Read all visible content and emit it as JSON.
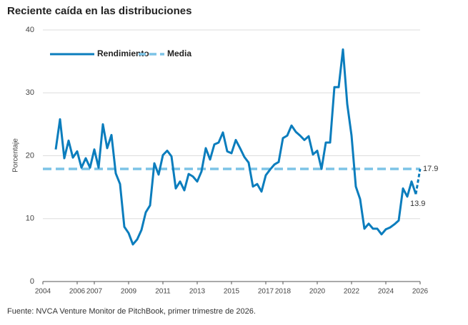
{
  "chart_data": {
    "type": "line",
    "title": "Reciente caída en las distribuciones",
    "y_label": "Porcentaje",
    "source": "Fuente: NVCA Venture Monitor de PitchBook, primer trimestre de 2026.",
    "x": [
      2004.75,
      2005,
      2005.25,
      2005.5,
      2005.75,
      2006,
      2006.25,
      2006.5,
      2006.75,
      2007,
      2007.25,
      2007.5,
      2007.75,
      2008,
      2008.25,
      2008.5,
      2008.75,
      2009,
      2009.25,
      2009.5,
      2009.75,
      2010,
      2010.25,
      2010.5,
      2010.75,
      2011,
      2011.25,
      2011.5,
      2011.75,
      2012,
      2012.25,
      2012.5,
      2012.75,
      2013,
      2013.25,
      2013.5,
      2013.75,
      2014,
      2014.25,
      2014.5,
      2014.75,
      2015,
      2015.25,
      2015.5,
      2015.75,
      2016,
      2016.25,
      2016.5,
      2016.75,
      2017,
      2017.25,
      2017.5,
      2017.75,
      2018,
      2018.25,
      2018.5,
      2018.75,
      2019,
      2019.25,
      2019.5,
      2019.75,
      2020,
      2020.25,
      2020.5,
      2020.75,
      2021,
      2021.25,
      2021.5,
      2021.75,
      2022,
      2022.25,
      2022.5,
      2022.75,
      2023,
      2023.25,
      2023.5,
      2023.75,
      2024,
      2024.25,
      2024.5,
      2024.75,
      2025,
      2025.25,
      2025.5,
      2025.75
    ],
    "series": [
      {
        "name": "Rendimiento",
        "color": "#0b7dbd",
        "values": [
          21.0,
          25.8,
          19.6,
          22.4,
          19.7,
          20.7,
          18.1,
          19.6,
          18.1,
          21.0,
          18.1,
          25.0,
          21.2,
          23.3,
          17.2,
          15.5,
          8.7,
          7.7,
          5.9,
          6.7,
          8.2,
          11.0,
          12.1,
          18.8,
          17.0,
          20.1,
          20.8,
          19.9,
          14.8,
          15.9,
          14.5,
          17.1,
          16.7,
          15.9,
          17.5,
          21.2,
          19.4,
          21.8,
          22.1,
          23.7,
          20.7,
          20.4,
          22.5,
          21.2,
          19.8,
          18.9,
          15.1,
          15.5,
          14.3,
          16.9,
          17.8,
          18.6,
          19.0,
          22.8,
          23.2,
          24.8,
          23.8,
          23.2,
          22.5,
          23.1,
          20.2,
          20.8,
          17.9,
          22.1,
          22.1,
          30.9,
          30.9,
          36.9,
          28.2,
          23.2,
          15.1,
          13.1,
          8.4,
          9.2,
          8.4,
          8.4,
          7.5,
          8.3,
          8.6,
          9.1,
          9.7,
          14.8,
          13.5,
          15.9,
          13.9
        ]
      }
    ],
    "projection": {
      "x": [
        2025.75,
        2026
      ],
      "values": [
        13.9,
        17.9
      ]
    },
    "mean": {
      "name": "Media",
      "color": "#7cc3e6",
      "value": 17.9
    },
    "xlim": [
      2004,
      2026
    ],
    "xticks": [
      2004,
      2006,
      2007,
      2009,
      2011,
      2013,
      2015,
      2017,
      2018,
      2020,
      2022,
      2024,
      2026
    ],
    "ylim": [
      0,
      40
    ],
    "yticks": [
      0,
      10,
      20,
      30,
      40
    ],
    "grid": true
  }
}
